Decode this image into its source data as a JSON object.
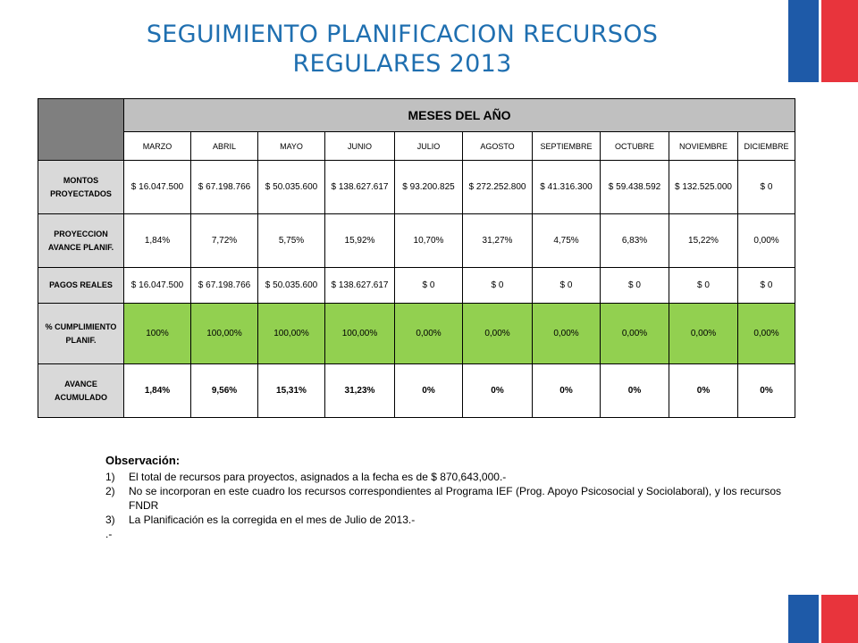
{
  "title": {
    "line1": "SEGUIMIENTO PLANIFICACION RECURSOS",
    "line2": "REGULARES 2013"
  },
  "colors": {
    "title": "#1f6fb0",
    "header_dark": "#7f7f7f",
    "header_light": "#c0c0c0",
    "row_header": "#d9d9d9",
    "highlight_green": "#92d050",
    "flag_blue": "#1e5aa8",
    "flag_red": "#e8343c"
  },
  "table": {
    "group_header": "MESES DEL AÑO",
    "months": [
      "MARZO",
      "ABRIL",
      "MAYO",
      "JUNIO",
      "JULIO",
      "AGOSTO",
      "SEPTIEMBRE",
      "OCTUBRE",
      "NOVIEMBRE",
      "DICIEMBRE"
    ],
    "rows": [
      {
        "label": "MONTOS PROYECTADOS",
        "values": [
          "$ 16.047.500",
          "$ 67.198.766",
          "$ 50.035.600",
          "$ 138.627.617",
          "$ 93.200.825",
          "$ 272.252.800",
          "$ 41.316.300",
          "$ 59.438.592",
          "$ 132.525.000",
          "$ 0"
        ]
      },
      {
        "label": "PROYECCION AVANCE PLANIF.",
        "values": [
          "1,84%",
          "7,72%",
          "5,75%",
          "15,92%",
          "10,70%",
          "31,27%",
          "4,75%",
          "6,83%",
          "15,22%",
          "0,00%"
        ]
      },
      {
        "label": "PAGOS REALES",
        "values": [
          "$ 16.047.500",
          "$ 67.198.766",
          "$ 50.035.600",
          "$ 138.627.617",
          "$ 0",
          "$ 0",
          "$ 0",
          "$ 0",
          "$ 0",
          "$ 0"
        ]
      },
      {
        "label": "% CUMPLIMIENTO PLANIF.",
        "values": [
          "100%",
          "100,00%",
          "100,00%",
          "100,00%",
          "0,00%",
          "0,00%",
          "0,00%",
          "0,00%",
          "0,00%",
          "0,00%"
        ]
      },
      {
        "label": "AVANCE ACUMULADO",
        "values": [
          "1,84%",
          "9,56%",
          "15,31%",
          "31,23%",
          "0%",
          "0%",
          "0%",
          "0%",
          "0%",
          "0%"
        ]
      }
    ]
  },
  "observations": {
    "title": "Observación:",
    "items": [
      {
        "num": "1)",
        "text": "El total de recursos para proyectos, asignados  a la fecha es de $ 870,643,000.-"
      },
      {
        "num": "2)",
        "text": "No se incorporan  en este cuadro los recursos correspondientes al Programa IEF  (Prog. Apoyo Psicosocial y Sociolaboral),  y los recursos FNDR"
      },
      {
        "num": "3)",
        "text": "La Planificación es  la corregida en el mes de Julio de 2013.-"
      }
    ],
    "footer": ".-"
  }
}
